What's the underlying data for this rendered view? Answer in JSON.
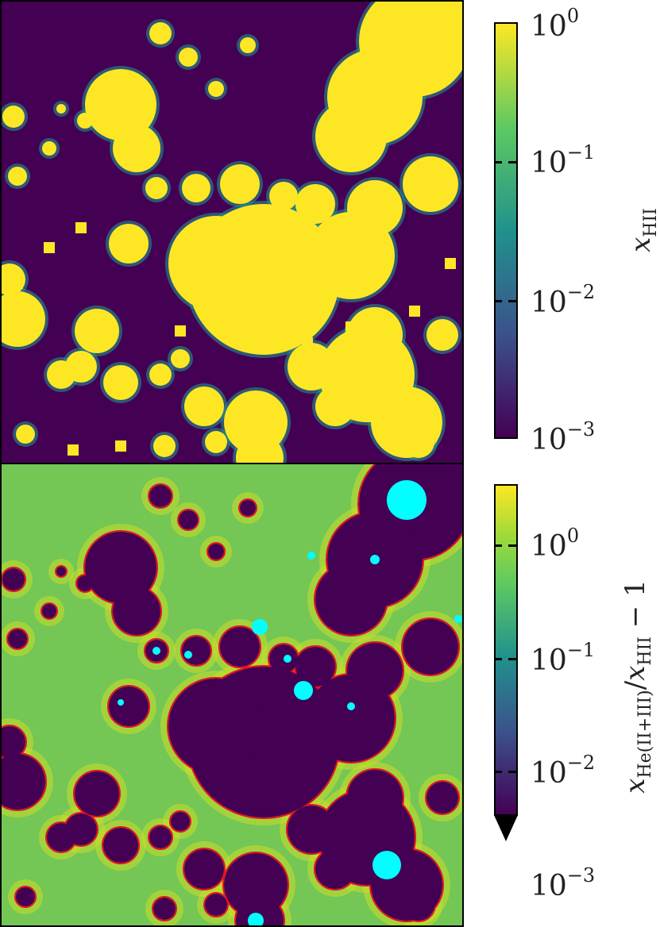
{
  "chart_data": [
    {
      "type": "heatmap",
      "title": "",
      "quantity": "x_HII",
      "colorbar": {
        "label_var": "x",
        "label_sub": "HII",
        "scale": "log",
        "range": [
          0.001,
          1
        ],
        "colormap": "viridis",
        "ticks": [
          {
            "base": "10",
            "exp": "0",
            "value": 1
          },
          {
            "base": "10",
            "exp": "−1",
            "value": 0.1
          },
          {
            "base": "10",
            "exp": "−2",
            "value": 0.01
          },
          {
            "base": "10",
            "exp": "−3",
            "value": 0.001
          }
        ]
      },
      "colors": {
        "ionized": "#fde725",
        "neutral": "#440154",
        "edge": "#21918c"
      }
    },
    {
      "type": "heatmap",
      "title": "",
      "quantity": "x_He(II+III)/x_HII − 1",
      "colorbar": {
        "label_num_var": "x",
        "label_num_sub": "He(II+III)",
        "label_den_var": "x",
        "label_den_sub": "HII",
        "label_tail": " − 1",
        "scale": "log",
        "range": [
          0.001,
          3
        ],
        "extend": "min",
        "colormap": "viridis",
        "ticks": [
          {
            "base": "10",
            "exp": "0",
            "value": 1
          },
          {
            "base": "10",
            "exp": "−1",
            "value": 0.1
          },
          {
            "base": "10",
            "exp": "−2",
            "value": 0.01
          },
          {
            "base": "10",
            "exp": "−3",
            "value": 0.001
          }
        ]
      },
      "colors": {
        "background": "#74c655",
        "regions": "#440154",
        "contour": "#e8101e",
        "masked": "#00ffff",
        "halo": "#c9df2a"
      }
    }
  ]
}
